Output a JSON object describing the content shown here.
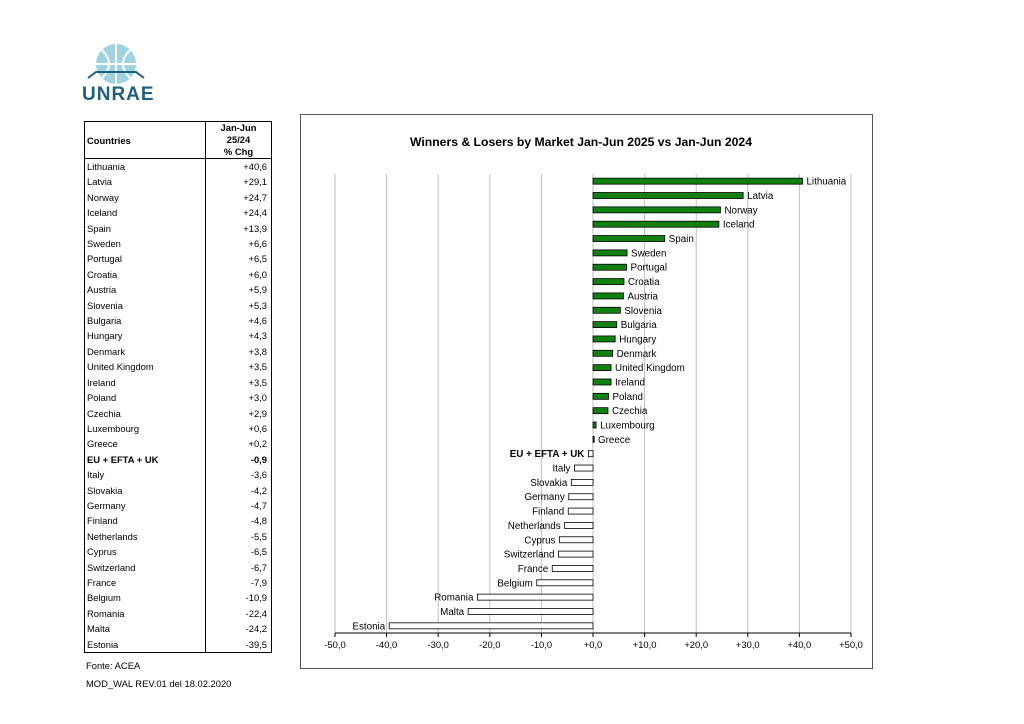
{
  "logo": {
    "text": "UNRAE"
  },
  "table": {
    "col_country": "Countries",
    "col_change_line1": "Jan-Jun 25/24",
    "col_change_line2": "% Chg",
    "rows": [
      {
        "country": "Lithuania",
        "change": "+40,6"
      },
      {
        "country": "Latvia",
        "change": "+29,1"
      },
      {
        "country": "Norway",
        "change": "+24,7"
      },
      {
        "country": "Iceland",
        "change": "+24,4"
      },
      {
        "country": "Spain",
        "change": "+13,9"
      },
      {
        "country": "Sweden",
        "change": "+6,6"
      },
      {
        "country": "Portugal",
        "change": "+6,5"
      },
      {
        "country": "Croatia",
        "change": "+6,0"
      },
      {
        "country": "Austria",
        "change": "+5,9"
      },
      {
        "country": "Slovenia",
        "change": "+5,3"
      },
      {
        "country": "Bulgaria",
        "change": "+4,6"
      },
      {
        "country": "Hungary",
        "change": "+4,3"
      },
      {
        "country": "Denmark",
        "change": "+3,8"
      },
      {
        "country": "United Kingdom",
        "change": "+3,5"
      },
      {
        "country": "Ireland",
        "change": "+3,5"
      },
      {
        "country": "Poland",
        "change": "+3,0"
      },
      {
        "country": "Czechia",
        "change": "+2,9"
      },
      {
        "country": "Luxembourg",
        "change": "+0,6"
      },
      {
        "country": "Greece",
        "change": "+0,2"
      },
      {
        "country": "EU + EFTA + UK",
        "change": "-0,9",
        "bold": true
      },
      {
        "country": "Italy",
        "change": "-3,6"
      },
      {
        "country": "Slovakia",
        "change": "-4,2"
      },
      {
        "country": "Germany",
        "change": "-4,7"
      },
      {
        "country": "Finland",
        "change": "-4,8"
      },
      {
        "country": "Netherlands",
        "change": "-5,5"
      },
      {
        "country": "Cyprus",
        "change": "-6,5"
      },
      {
        "country": "Switzerland",
        "change": "-6,7"
      },
      {
        "country": "France",
        "change": "-7,9"
      },
      {
        "country": "Belgium",
        "change": "-10,9"
      },
      {
        "country": "Romania",
        "change": "-22,4"
      },
      {
        "country": "Malta",
        "change": "-24,2"
      },
      {
        "country": "Estonia",
        "change": "-39,5"
      }
    ]
  },
  "footer": {
    "source": "Fonte: ACEA",
    "doc_ref": "MOD_WAL REV.01 del 18.02.2020"
  },
  "chart_data": {
    "type": "bar",
    "orientation": "horizontal",
    "title": "Winners & Losers by Market  Jan-Jun 2025 vs Jan-Jun 2024",
    "xlim": [
      -50,
      50
    ],
    "xticks": [
      "-50,0",
      "-40,0",
      "-30,0",
      "-20,0",
      "-10,0",
      "+0,0",
      "+10,0",
      "+20,0",
      "+30,0",
      "+40,0",
      "+50,0"
    ],
    "grid": true,
    "positive_color": "#108010",
    "negative_color": "#ffffff",
    "categories": [
      "Lithuania",
      "Latvia",
      "Norway",
      "Iceland",
      "Spain",
      "Sweden",
      "Portugal",
      "Croatia",
      "Austria",
      "Slovenia",
      "Bulgaria",
      "Hungary",
      "Denmark",
      "United Kingdom",
      "Ireland",
      "Poland",
      "Czechia",
      "Luxembourg",
      "Greece",
      "EU + EFTA + UK",
      "Italy",
      "Slovakia",
      "Germany",
      "Finland",
      "Netherlands",
      "Cyprus",
      "Switzerland",
      "France",
      "Belgium",
      "Romania",
      "Malta",
      "Estonia"
    ],
    "values": [
      40.6,
      29.1,
      24.7,
      24.4,
      13.9,
      6.6,
      6.5,
      6.0,
      5.9,
      5.3,
      4.6,
      4.3,
      3.8,
      3.5,
      3.5,
      3.0,
      2.9,
      0.6,
      0.2,
      -0.9,
      -3.6,
      -4.2,
      -4.7,
      -4.8,
      -5.5,
      -6.5,
      -6.7,
      -7.9,
      -10.9,
      -22.4,
      -24.2,
      -39.5
    ],
    "bold_categories": [
      "EU + EFTA + UK"
    ]
  }
}
